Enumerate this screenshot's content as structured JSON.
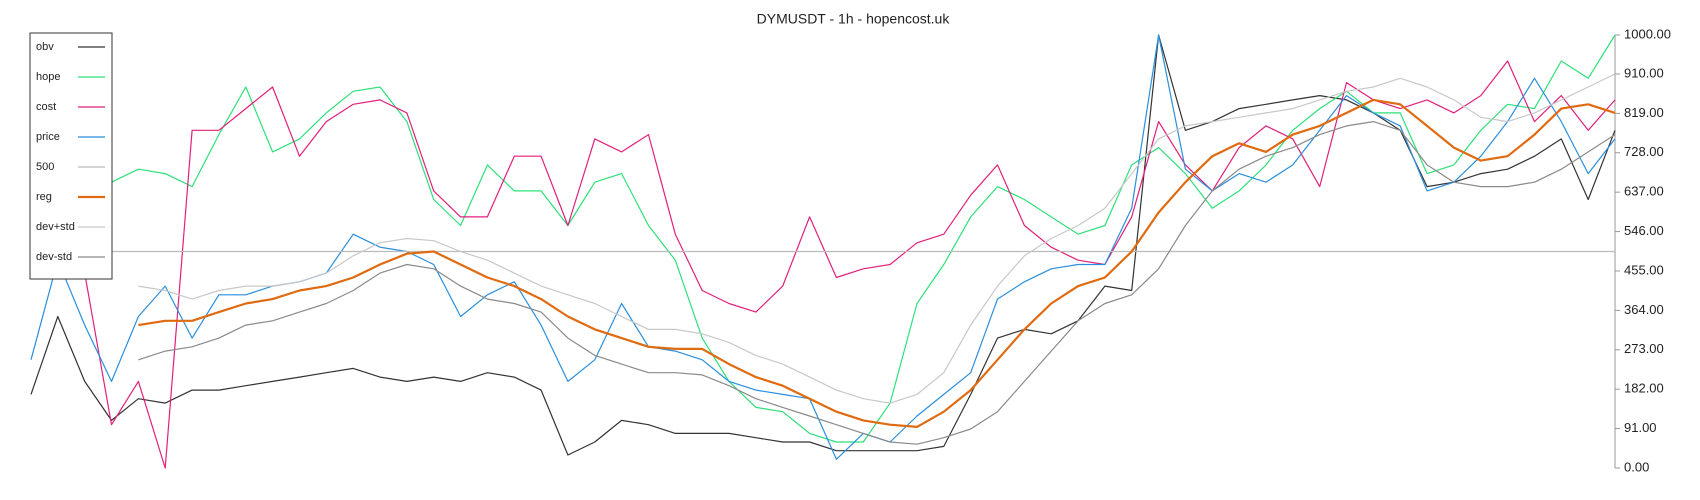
{
  "chart_data": {
    "type": "line",
    "title": "DYMUSDT - 1h - hopencost.uk",
    "ylim": [
      0,
      1000
    ],
    "yticks": [
      {
        "value": 0,
        "label": "0.00"
      },
      {
        "value": 91,
        "label": "91.00"
      },
      {
        "value": 182,
        "label": "182.00"
      },
      {
        "value": 273,
        "label": "273.00"
      },
      {
        "value": 364,
        "label": "364.00"
      },
      {
        "value": 455,
        "label": "455.00"
      },
      {
        "value": 546,
        "label": "546.00"
      },
      {
        "value": 637,
        "label": "637.00"
      },
      {
        "value": 728,
        "label": "728.00"
      },
      {
        "value": 819,
        "label": "819.00"
      },
      {
        "value": 910,
        "label": "910.00"
      },
      {
        "value": 1000,
        "label": "1000.00"
      }
    ],
    "legend": "upper left",
    "series": [
      {
        "name": "obv",
        "color": "#333333",
        "values": [
          170,
          350,
          200,
          110,
          160,
          150,
          180,
          180,
          190,
          200,
          210,
          220,
          230,
          210,
          200,
          210,
          200,
          220,
          210,
          180,
          30,
          60,
          110,
          100,
          80,
          80,
          80,
          70,
          60,
          60,
          40,
          40,
          40,
          40,
          50,
          170,
          300,
          320,
          310,
          340,
          420,
          410,
          1000,
          780,
          800,
          830,
          840,
          850,
          860,
          850,
          820,
          780,
          650,
          660,
          680,
          690,
          720,
          760,
          620,
          780
        ]
      },
      {
        "name": "hope",
        "color": "#2ee07a",
        "values": [
          null,
          null,
          null,
          660,
          690,
          680,
          650,
          770,
          880,
          730,
          760,
          820,
          870,
          880,
          800,
          620,
          560,
          700,
          640,
          640,
          560,
          660,
          680,
          560,
          480,
          300,
          200,
          140,
          130,
          80,
          60,
          60,
          150,
          380,
          470,
          580,
          650,
          620,
          580,
          540,
          560,
          700,
          740,
          680,
          600,
          640,
          700,
          780,
          830,
          870,
          820,
          820,
          680,
          700,
          780,
          840,
          830,
          940,
          900,
          1000
        ]
      },
      {
        "name": "cost",
        "color": "#e0207a",
        "values": [
          450,
          470,
          450,
          100,
          200,
          0,
          780,
          780,
          830,
          880,
          720,
          800,
          840,
          850,
          820,
          640,
          580,
          580,
          720,
          720,
          560,
          760,
          730,
          770,
          540,
          410,
          380,
          360,
          420,
          580,
          440,
          460,
          470,
          520,
          540,
          630,
          700,
          560,
          510,
          480,
          470,
          580,
          800,
          700,
          640,
          740,
          790,
          760,
          650,
          890,
          850,
          830,
          850,
          820,
          860,
          940,
          800,
          860,
          780,
          850
        ]
      },
      {
        "name": "price",
        "color": "#2a8fdd",
        "values": [
          250,
          480,
          330,
          200,
          350,
          420,
          300,
          400,
          400,
          420,
          430,
          450,
          540,
          510,
          500,
          470,
          350,
          400,
          430,
          330,
          200,
          250,
          380,
          280,
          270,
          250,
          200,
          180,
          170,
          160,
          20,
          80,
          60,
          120,
          170,
          220,
          390,
          430,
          460,
          470,
          470,
          600,
          1000,
          690,
          640,
          680,
          660,
          700,
          780,
          860,
          820,
          790,
          640,
          660,
          720,
          800,
          900,
          800,
          680,
          760
        ]
      },
      {
        "name": "500",
        "color": "#bbbbbb",
        "values": [
          500,
          500,
          500,
          500,
          500,
          500,
          500,
          500,
          500,
          500,
          500,
          500,
          500,
          500,
          500,
          500,
          500,
          500,
          500,
          500,
          500,
          500,
          500,
          500,
          500,
          500,
          500,
          500,
          500,
          500,
          500,
          500,
          500,
          500,
          500,
          500,
          500,
          500,
          500,
          500,
          500,
          500,
          500,
          500,
          500,
          500,
          500,
          500,
          500,
          500,
          500,
          500,
          500,
          500,
          500,
          500,
          500,
          500,
          500,
          500
        ]
      },
      {
        "name": "reg",
        "color": "#e06a10",
        "values": [
          null,
          null,
          null,
          null,
          330,
          340,
          340,
          360,
          380,
          390,
          410,
          420,
          440,
          470,
          495,
          500,
          470,
          440,
          420,
          390,
          350,
          320,
          300,
          280,
          275,
          275,
          240,
          210,
          190,
          160,
          130,
          110,
          100,
          95,
          130,
          180,
          250,
          320,
          380,
          420,
          440,
          500,
          590,
          660,
          720,
          750,
          730,
          770,
          790,
          820,
          850,
          840,
          790,
          740,
          710,
          720,
          770,
          830,
          840,
          820
        ]
      },
      {
        "name": "dev+std",
        "color": "#c8c8c8",
        "values": [
          null,
          null,
          null,
          null,
          420,
          410,
          390,
          410,
          420,
          420,
          430,
          450,
          490,
          520,
          530,
          525,
          500,
          480,
          450,
          420,
          400,
          380,
          350,
          320,
          320,
          310,
          290,
          260,
          240,
          210,
          180,
          160,
          150,
          170,
          220,
          330,
          420,
          490,
          530,
          560,
          600,
          680,
          760,
          790,
          800,
          810,
          820,
          830,
          850,
          870,
          880,
          900,
          880,
          850,
          810,
          800,
          820,
          850,
          880,
          910
        ]
      },
      {
        "name": "dev-std",
        "color": "#8a8a8a",
        "values": [
          null,
          null,
          null,
          null,
          250,
          270,
          280,
          300,
          330,
          340,
          360,
          380,
          410,
          450,
          470,
          460,
          420,
          390,
          380,
          360,
          300,
          260,
          240,
          220,
          220,
          215,
          190,
          160,
          140,
          120,
          100,
          80,
          60,
          55,
          70,
          90,
          130,
          200,
          270,
          340,
          380,
          400,
          460,
          560,
          640,
          690,
          720,
          740,
          770,
          790,
          800,
          780,
          700,
          660,
          650,
          650,
          660,
          690,
          730,
          770
        ]
      }
    ]
  }
}
